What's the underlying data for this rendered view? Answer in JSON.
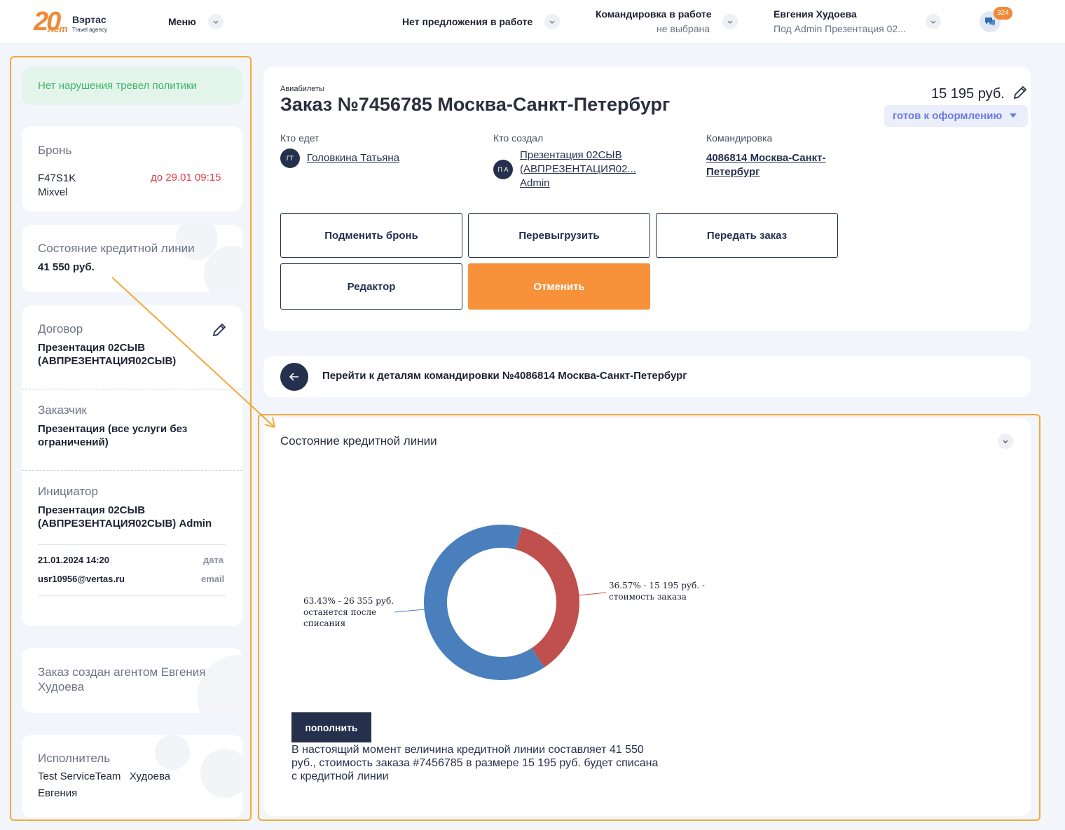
{
  "header": {
    "logo_number": "20",
    "logo_suffix": "лет",
    "logo_brand": "Вэртас",
    "logo_tagline": "Travel agency",
    "menu_label": "Меню",
    "offer_label": "Нет предложения в работе",
    "trip_label": "Командировка в работе",
    "trip_sub": "не выбрана",
    "user_name": "Евгения Худоева",
    "user_sub": "Под Admin Презентация 02...",
    "chat_count": "324"
  },
  "sidebar": {
    "policy": "Нет нарушения тревел политики",
    "booking_label": "Бронь",
    "booking_code": "F47S1K",
    "booking_provider": "Mixvel",
    "booking_deadline": "до 29.01 09:15",
    "credit_label": "Состояние кредитной линии",
    "credit_value": "41 550 руб.",
    "contract_label": "Договор",
    "contract_value_1": "Презентация 02СЫВ",
    "contract_value_2": "(АВПРЕЗЕНТАЦИЯ02СЫВ)",
    "customer_label": "Заказчик",
    "customer_value_1": "Презентация (все услуги без",
    "customer_value_2": "ограничений)",
    "initiator_label": "Инициатор",
    "initiator_value_1": "Презентация 02СЫВ",
    "initiator_value_2": "(АВПРЕЗЕНТАЦИЯ02СЫВ) Admin",
    "date_value": "21.01.2024 14:20",
    "date_key": "дата",
    "email_value": "usr10956@vertas.ru",
    "email_key": "email",
    "agent_text_1": "Заказ создан агентом Евгения",
    "agent_text_2": "Худоева",
    "executor_label": "Исполнитель",
    "executor_value_1": "Test ServiceTeam   Худоева",
    "executor_value_2": "Евгения"
  },
  "order": {
    "category": "Авиабилеты",
    "title": "Заказ №7456785 Москва-Санкт-Петербург",
    "price": "15 195 руб.",
    "status": "готов к оформлению",
    "who_goes_label": "Кто едет",
    "who_goes_initials": "ГТ",
    "who_goes_name": "Головкина Татьяна",
    "creator_label": "Кто создал",
    "creator_initials": "П А",
    "creator_line1": "Презентация 02СЫВ",
    "creator_line2": "(АВПРЕЗЕНТАЦИЯ02...",
    "creator_line3": "Admin",
    "trip_label": "Командировка",
    "trip_line1": "4086814 Москва-Санкт-",
    "trip_line2": "Петербург",
    "buttons": {
      "replace": "Подменить бронь",
      "reupload": "Перевыгрузить",
      "transfer": "Передать заказ",
      "editor": "Редактор",
      "cancel": "Отменить"
    }
  },
  "nav": {
    "text": "Перейти к деталям командировки №4086814 Москва-Санкт-Петербург"
  },
  "credit": {
    "title": "Состояние кредитной линии",
    "topup_label": "пополнить",
    "note_1": "В настоящий момент величина кредитной линии составляет 41 550",
    "note_2": "руб., стоимость заказа #7456785 в размере 15 195 руб. будет списана",
    "note_3": "с кредитной линии"
  },
  "chart_data": {
    "type": "pie",
    "title": "",
    "slices": [
      {
        "label_1": "63.43% - 26 355 руб.",
        "label_2": "останется после",
        "label_3": "списания",
        "value": 26355,
        "percent": 63.43,
        "color": "#4a7fbd"
      },
      {
        "label_1": "36.57% - 15 195 руб.  -",
        "label_2": "стоимость заказа",
        "value": 15195,
        "percent": 36.57,
        "color": "#c0504d"
      }
    ]
  },
  "colors": {
    "accent_orange": "#f7923a",
    "navy": "#25304d",
    "highlight_frame": "#f3a93c",
    "policy_green": "#3bb56a",
    "deadline_red": "#e0404a"
  }
}
